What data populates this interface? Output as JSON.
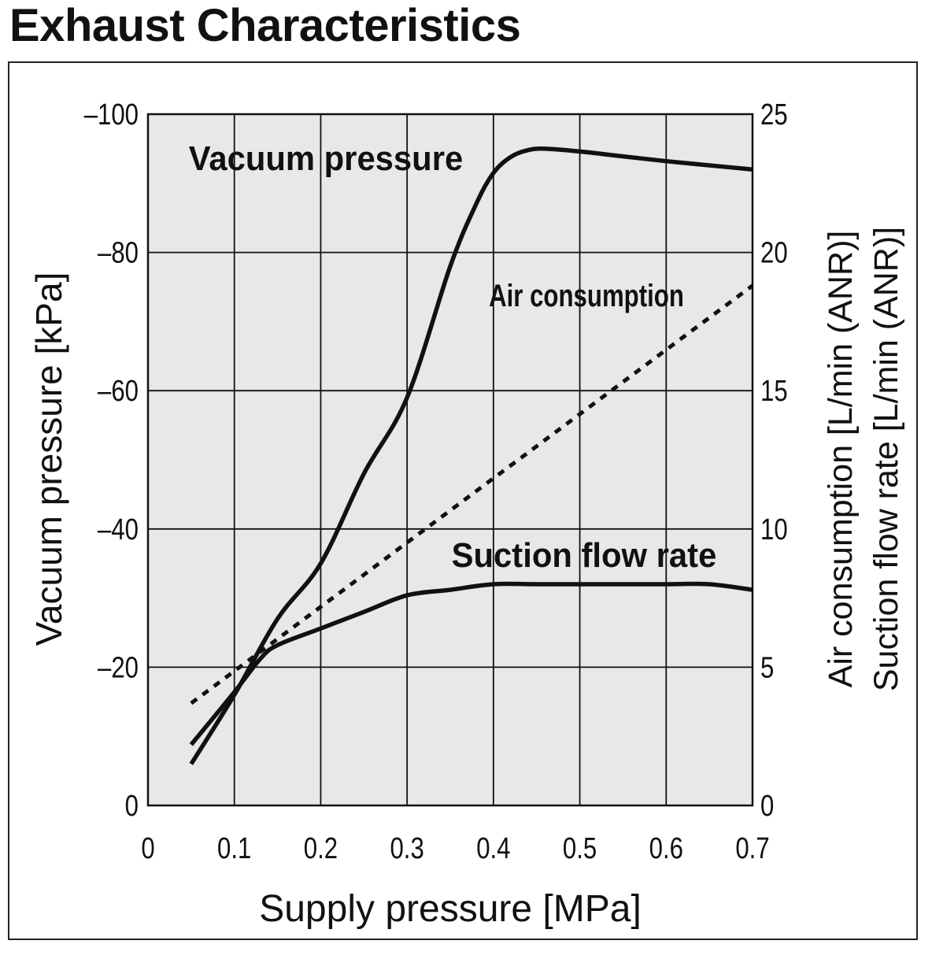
{
  "title": "Exhaust Characteristics",
  "chart_data": {
    "type": "line",
    "title": "Exhaust Characteristics",
    "xlabel": "Supply pressure [MPa]",
    "ylabel_left": "Vacuum pressure [kPa]",
    "ylabel_right_line1": "Air consumption [L/min (ANR)]",
    "ylabel_right_line2": "Suction flow rate [L/min (ANR)]",
    "xlim": [
      0,
      0.7
    ],
    "ylim_left": [
      0,
      -100
    ],
    "ylim_right": [
      0,
      25
    ],
    "x_ticks": [
      "0",
      "0.1",
      "0.2",
      "0.3",
      "0.4",
      "0.5",
      "0.6",
      "0.7"
    ],
    "x_tick_values": [
      0,
      0.1,
      0.2,
      0.3,
      0.4,
      0.5,
      0.6,
      0.7
    ],
    "y_left_ticks": [
      "–100",
      "–80",
      "–60",
      "–40",
      "–20",
      "0"
    ],
    "y_left_tick_values": [
      -100,
      -80,
      -60,
      -40,
      -20,
      0
    ],
    "y_right_ticks": [
      "25",
      "20",
      "15",
      "10",
      "5",
      "0"
    ],
    "y_right_tick_values": [
      25,
      20,
      15,
      10,
      5,
      0
    ],
    "x_grid_values": [
      0.1,
      0.2,
      0.3,
      0.4,
      0.5,
      0.6
    ],
    "y_grid_values": [
      -20,
      -40,
      -60,
      -80
    ],
    "grid": true,
    "plot_background": "#e8e8e8",
    "line_color": "#111111",
    "series": [
      {
        "name": "Vacuum pressure",
        "axis": "left",
        "style": "solid",
        "x": [
          0.05,
          0.1,
          0.15,
          0.2,
          0.25,
          0.3,
          0.35,
          0.38,
          0.4,
          0.42,
          0.44,
          0.46,
          0.5,
          0.55,
          0.6,
          0.65,
          0.7
        ],
        "y": [
          -6,
          -16,
          -27,
          -35,
          -48,
          -59,
          -78,
          -87,
          -91.5,
          -93.8,
          -94.8,
          -95,
          -94.6,
          -93.9,
          -93.2,
          -92.6,
          -92
        ]
      },
      {
        "name": "Air consumption",
        "axis": "right",
        "style": "dotted",
        "x": [
          0.05,
          0.7
        ],
        "y": [
          3.7,
          18.8
        ]
      },
      {
        "name": "Suction flow rate",
        "axis": "right",
        "style": "solid",
        "x": [
          0.05,
          0.1,
          0.13,
          0.15,
          0.2,
          0.25,
          0.3,
          0.35,
          0.4,
          0.45,
          0.5,
          0.55,
          0.6,
          0.65,
          0.7
        ],
        "y": [
          2.2,
          4.1,
          5.3,
          5.8,
          6.4,
          7.0,
          7.6,
          7.8,
          8.0,
          8.0,
          8.0,
          8.0,
          8.0,
          8.0,
          7.8
        ]
      }
    ],
    "annotations": [
      {
        "text": "Vacuum pressure",
        "series": "Vacuum pressure"
      },
      {
        "text": "Air consumption",
        "series": "Air consumption"
      },
      {
        "text": "Suction flow rate",
        "series": "Suction flow rate"
      }
    ]
  }
}
